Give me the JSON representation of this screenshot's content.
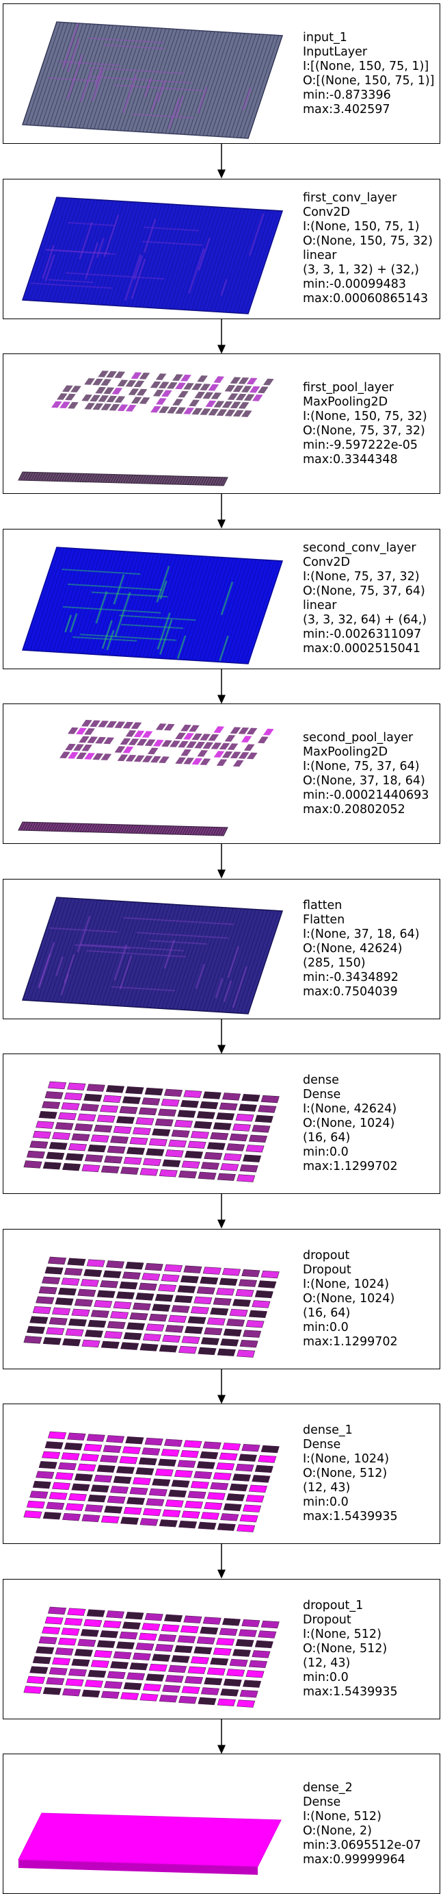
{
  "layers": [
    {
      "id": "input_1",
      "lines": [
        "input_1",
        "InputLayer",
        "I:[(None, 150, 75, 1)]",
        "O:[(None, 150, 75, 1)]",
        "min:-0.873396",
        "max:3.402597"
      ],
      "viz": "slab",
      "colors": {
        "base": "#6a7090",
        "stripe": "#2a2e4a",
        "accent": "#9a4fc0",
        "edge": "#3a3f60"
      }
    },
    {
      "id": "first_conv_layer",
      "lines": [
        "first_conv_layer",
        "Conv2D",
        "I:(None, 150, 75, 1)",
        "O:(None, 150, 75, 32)",
        "linear",
        "(3, 3, 1, 32) + (32,)",
        "min:-0.00099483",
        "max:0.00060865143"
      ],
      "viz": "slab",
      "colors": {
        "base": "#1a1acc",
        "stripe": "#10109a",
        "accent": "#6a2fd0",
        "edge": "#0c0c80"
      }
    },
    {
      "id": "first_pool_layer",
      "lines": [
        "first_pool_layer",
        "MaxPooling2D",
        "I:(None, 150, 75, 32)",
        "O:(None, 75, 37, 32)",
        "min:-9.597222e-05",
        "max:0.3344348"
      ],
      "viz": "pool",
      "colors": {
        "base": "#6a4a70",
        "stripe": "#2a2030",
        "accent": "#b03cc8",
        "edge": "#3a2a40"
      }
    },
    {
      "id": "second_conv_layer",
      "lines": [
        "second_conv_layer",
        "Conv2D",
        "I:(None, 75, 37, 32)",
        "O:(None, 75, 37, 64)",
        "linear",
        "(3, 3, 32, 64) + (64,)",
        "min:-0.0026311097",
        "max:0.0002515041"
      ],
      "viz": "slab",
      "colors": {
        "base": "#1010e0",
        "stripe": "#0a0aa8",
        "accent": "#30d060",
        "edge": "#080890"
      }
    },
    {
      "id": "second_pool_layer",
      "lines": [
        "second_pool_layer",
        "MaxPooling2D",
        "I:(None, 75, 37, 64)",
        "O:(None, 37, 18, 64)",
        "min:-0.00021440693",
        "max:0.20802052"
      ],
      "viz": "pool",
      "colors": {
        "base": "#7a3a80",
        "stripe": "#2a1a30",
        "accent": "#d030e0",
        "edge": "#3a2040"
      }
    },
    {
      "id": "flatten",
      "lines": [
        "flatten",
        "Flatten",
        "I:(None, 37, 18, 64)",
        "O:(None, 42624)",
        "(285, 150)",
        "min:-0.3434892",
        "max:0.7504039"
      ],
      "viz": "slab",
      "colors": {
        "base": "#30288a",
        "stripe": "#1a1660",
        "accent": "#7a40c0",
        "edge": "#141050"
      }
    },
    {
      "id": "dense",
      "lines": [
        "dense",
        "Dense",
        "I:(None, 42624)",
        "O:(None, 1024)",
        "(16, 64)",
        "min:0.0",
        "max:1.1299702"
      ],
      "viz": "blocks",
      "colors": {
        "base": "#8a2a8a",
        "stripe": "#3a1a3a",
        "accent": "#e030e8",
        "edge": "#401840"
      }
    },
    {
      "id": "dropout",
      "lines": [
        "dropout",
        "Dropout",
        "I:(None, 1024)",
        "O:(None, 1024)",
        "(16, 64)",
        "min:0.0",
        "max:1.1299702"
      ],
      "viz": "blocks",
      "colors": {
        "base": "#8a2a8a",
        "stripe": "#3a1a3a",
        "accent": "#e030e8",
        "edge": "#401840"
      }
    },
    {
      "id": "dense_1",
      "lines": [
        "dense_1",
        "Dense",
        "I:(None, 1024)",
        "O:(None, 512)",
        "(12, 43)",
        "min:0.0",
        "max:1.5439935"
      ],
      "viz": "blocks",
      "colors": {
        "base": "#b020b8",
        "stripe": "#3a1a3a",
        "accent": "#ff10ff",
        "edge": "#501850"
      }
    },
    {
      "id": "dropout_1",
      "lines": [
        "dropout_1",
        "Dropout",
        "I:(None, 512)",
        "O:(None, 512)",
        "(12, 43)",
        "min:0.0",
        "max:1.5439935"
      ],
      "viz": "blocks",
      "colors": {
        "base": "#b020b8",
        "stripe": "#3a1a3a",
        "accent": "#ff10ff",
        "edge": "#501850"
      }
    },
    {
      "id": "dense_2",
      "lines": [
        "dense_2",
        "Dense",
        "I:(None, 512)",
        "O:(None, 2)",
        "min:3.0695512e-07",
        "max:0.99999964"
      ],
      "viz": "solid",
      "colors": {
        "base": "#ff00ff",
        "stripe": "#e000e0",
        "accent": "#ff40ff",
        "edge": "#c000c0"
      }
    }
  ]
}
